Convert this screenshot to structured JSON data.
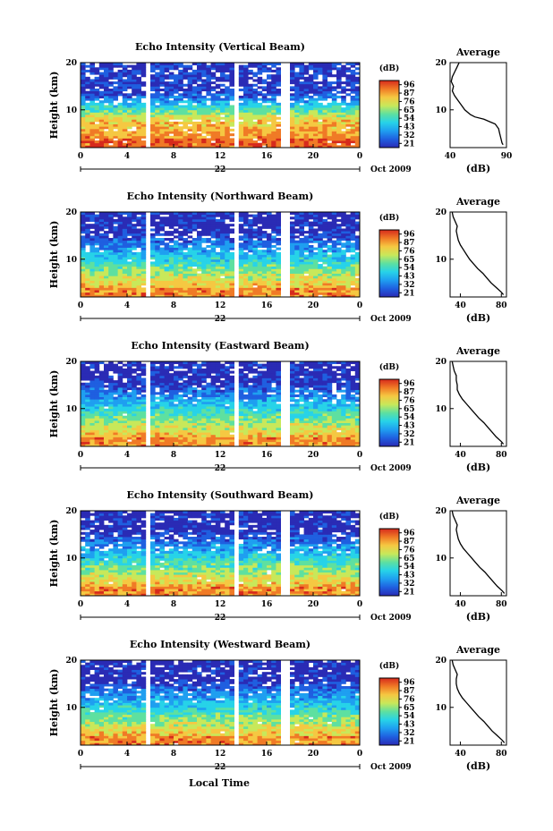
{
  "chart_data": {
    "type": "heatmap",
    "common": {
      "x_ticks": [
        "0",
        "4",
        "8",
        "12",
        "16",
        "20",
        "0"
      ],
      "x_range": [
        0,
        24
      ],
      "date_day": "22",
      "date_label": "Oct 2009",
      "xlabel": "Local Time",
      "ylabel": "Height (km)",
      "y_ticks": [
        "10",
        "20"
      ],
      "y_range": [
        2,
        20
      ],
      "colorbar_unit": "(dB)",
      "colorbar_ticks": [
        "96",
        "87",
        "76",
        "65",
        "54",
        "43",
        "32",
        "21"
      ],
      "colorbar_colors": [
        "#2a2bb5",
        "#1f5fe0",
        "#1f9ff0",
        "#27d3e8",
        "#5ee0a0",
        "#c8e85a",
        "#f5c842",
        "#f07a26",
        "#d62a1c"
      ],
      "data_gaps_hours": [
        [
          5.8,
          6.0
        ],
        [
          13.1,
          13.5
        ],
        [
          17.3,
          17.8
        ]
      ],
      "profile_title": "Average",
      "profile_xlabel": "(dB)"
    },
    "panels": [
      {
        "title": "Echo Intensity (Vertical Beam)",
        "profile_xticks": [
          "40",
          "90"
        ],
        "profile_xlim": [
          40,
          90
        ],
        "profile_points": [
          [
            87,
            2.6
          ],
          [
            86,
            3
          ],
          [
            85,
            4
          ],
          [
            84,
            5
          ],
          [
            83,
            6
          ],
          [
            80,
            7
          ],
          [
            75,
            7.5
          ],
          [
            70,
            8
          ],
          [
            62,
            8.5
          ],
          [
            58,
            9
          ],
          [
            53,
            10
          ],
          [
            50,
            11
          ],
          [
            47,
            12
          ],
          [
            44,
            13
          ],
          [
            42,
            14
          ],
          [
            43,
            15
          ],
          [
            41,
            16
          ],
          [
            42,
            17
          ],
          [
            44,
            18
          ],
          [
            46,
            19
          ],
          [
            48,
            20
          ]
        ]
      },
      {
        "title": "Echo Intensity (Northward Beam)",
        "profile_xticks": [
          "40",
          "80"
        ],
        "profile_xlim": [
          30,
          85
        ],
        "profile_points": [
          [
            82,
            2.5
          ],
          [
            80,
            3
          ],
          [
            75,
            4
          ],
          [
            70,
            5
          ],
          [
            66,
            6
          ],
          [
            62,
            7
          ],
          [
            57,
            8
          ],
          [
            53,
            9
          ],
          [
            49,
            10
          ],
          [
            46,
            11
          ],
          [
            43,
            12
          ],
          [
            40,
            13
          ],
          [
            38,
            14
          ],
          [
            37,
            15
          ],
          [
            36,
            16
          ],
          [
            37,
            17
          ],
          [
            35,
            18
          ],
          [
            33,
            19
          ],
          [
            32,
            20
          ]
        ]
      },
      {
        "title": "Echo Intensity (Eastward Beam)",
        "profile_xticks": [
          "40",
          "80"
        ],
        "profile_xlim": [
          30,
          85
        ],
        "profile_points": [
          [
            82,
            2.5
          ],
          [
            80,
            3
          ],
          [
            75,
            4
          ],
          [
            71,
            5
          ],
          [
            67,
            6
          ],
          [
            63,
            7
          ],
          [
            58,
            8
          ],
          [
            54,
            9
          ],
          [
            50,
            10
          ],
          [
            46,
            11
          ],
          [
            42,
            12
          ],
          [
            39,
            13
          ],
          [
            37,
            14
          ],
          [
            37,
            15
          ],
          [
            36,
            16
          ],
          [
            36,
            17
          ],
          [
            34,
            18
          ],
          [
            33,
            19
          ],
          [
            32,
            20
          ]
        ]
      },
      {
        "title": "Echo Intensity (Southward Beam)",
        "profile_xticks": [
          "40",
          "80"
        ],
        "profile_xlim": [
          30,
          85
        ],
        "profile_points": [
          [
            83,
            2.5
          ],
          [
            81,
            3
          ],
          [
            76,
            4
          ],
          [
            72,
            5
          ],
          [
            68,
            6
          ],
          [
            64,
            7
          ],
          [
            59,
            8
          ],
          [
            55,
            9
          ],
          [
            51,
            10
          ],
          [
            47,
            11
          ],
          [
            43,
            12
          ],
          [
            40,
            13
          ],
          [
            38,
            14
          ],
          [
            37,
            15
          ],
          [
            36,
            16
          ],
          [
            37,
            17
          ],
          [
            35,
            18
          ],
          [
            33,
            19
          ],
          [
            32,
            20
          ]
        ]
      },
      {
        "title": "Echo Intensity (Westward Beam)",
        "profile_xticks": [
          "40",
          "80"
        ],
        "profile_xlim": [
          30,
          85
        ],
        "profile_points": [
          [
            83,
            2.5
          ],
          [
            81,
            3
          ],
          [
            76,
            4
          ],
          [
            71,
            5
          ],
          [
            67,
            6
          ],
          [
            63,
            7
          ],
          [
            58,
            8
          ],
          [
            54,
            9
          ],
          [
            50,
            10
          ],
          [
            46,
            11
          ],
          [
            42,
            12
          ],
          [
            39,
            13
          ],
          [
            37,
            14
          ],
          [
            36,
            15
          ],
          [
            36,
            16
          ],
          [
            37,
            17
          ],
          [
            35,
            18
          ],
          [
            33,
            19
          ],
          [
            32,
            20
          ]
        ]
      }
    ]
  }
}
